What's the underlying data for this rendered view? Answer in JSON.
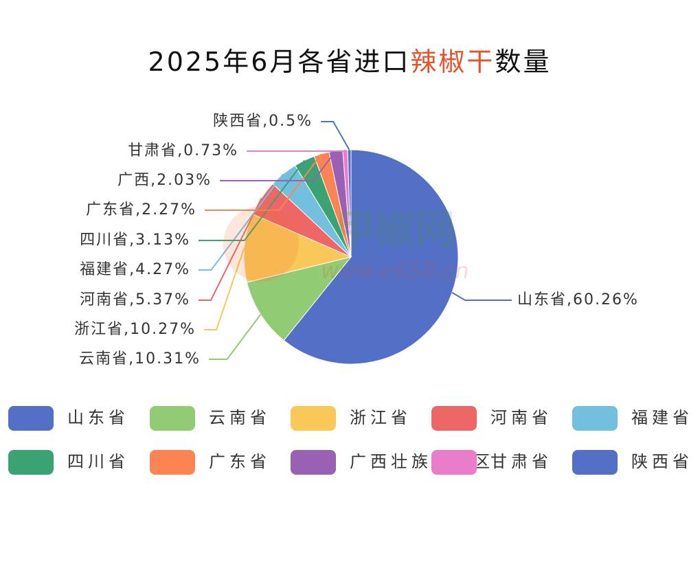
{
  "chart_data": {
    "type": "pie",
    "title": [
      "2025年6月各省进口",
      "辣椒干",
      "数量"
    ],
    "title_colors": [
      "#111111",
      "#e2542c",
      "#111111"
    ],
    "watermark": "甲椒网",
    "watermark_url": "www.e658.cn",
    "categories": [
      "山东省",
      "云南省",
      "浙江省",
      "河南省",
      "福建省",
      "四川省",
      "广东省",
      "广西壮族自治区",
      "甘肃省",
      "陕西省"
    ],
    "values": [
      60.26,
      10.31,
      10.27,
      5.37,
      4.27,
      3.13,
      2.27,
      2.03,
      0.73,
      0.5
    ],
    "value_labels": [
      "山东省,60.26%",
      "云南省,10.31%",
      "浙江省,10.27%",
      "河南省,5.37%",
      "福建省,4.27%",
      "四川省,3.13%",
      "广东省,2.27%",
      "广西,2.03%",
      "甘肃省,0.73%",
      "陕西省,0.5%"
    ],
    "colors": [
      "#5470c6",
      "#91cc75",
      "#fac858",
      "#ee6666",
      "#73c0de",
      "#3ba272",
      "#fc8452",
      "#9a60b4",
      "#ea7ccc",
      "#5470c6"
    ],
    "legend": "bottom"
  }
}
